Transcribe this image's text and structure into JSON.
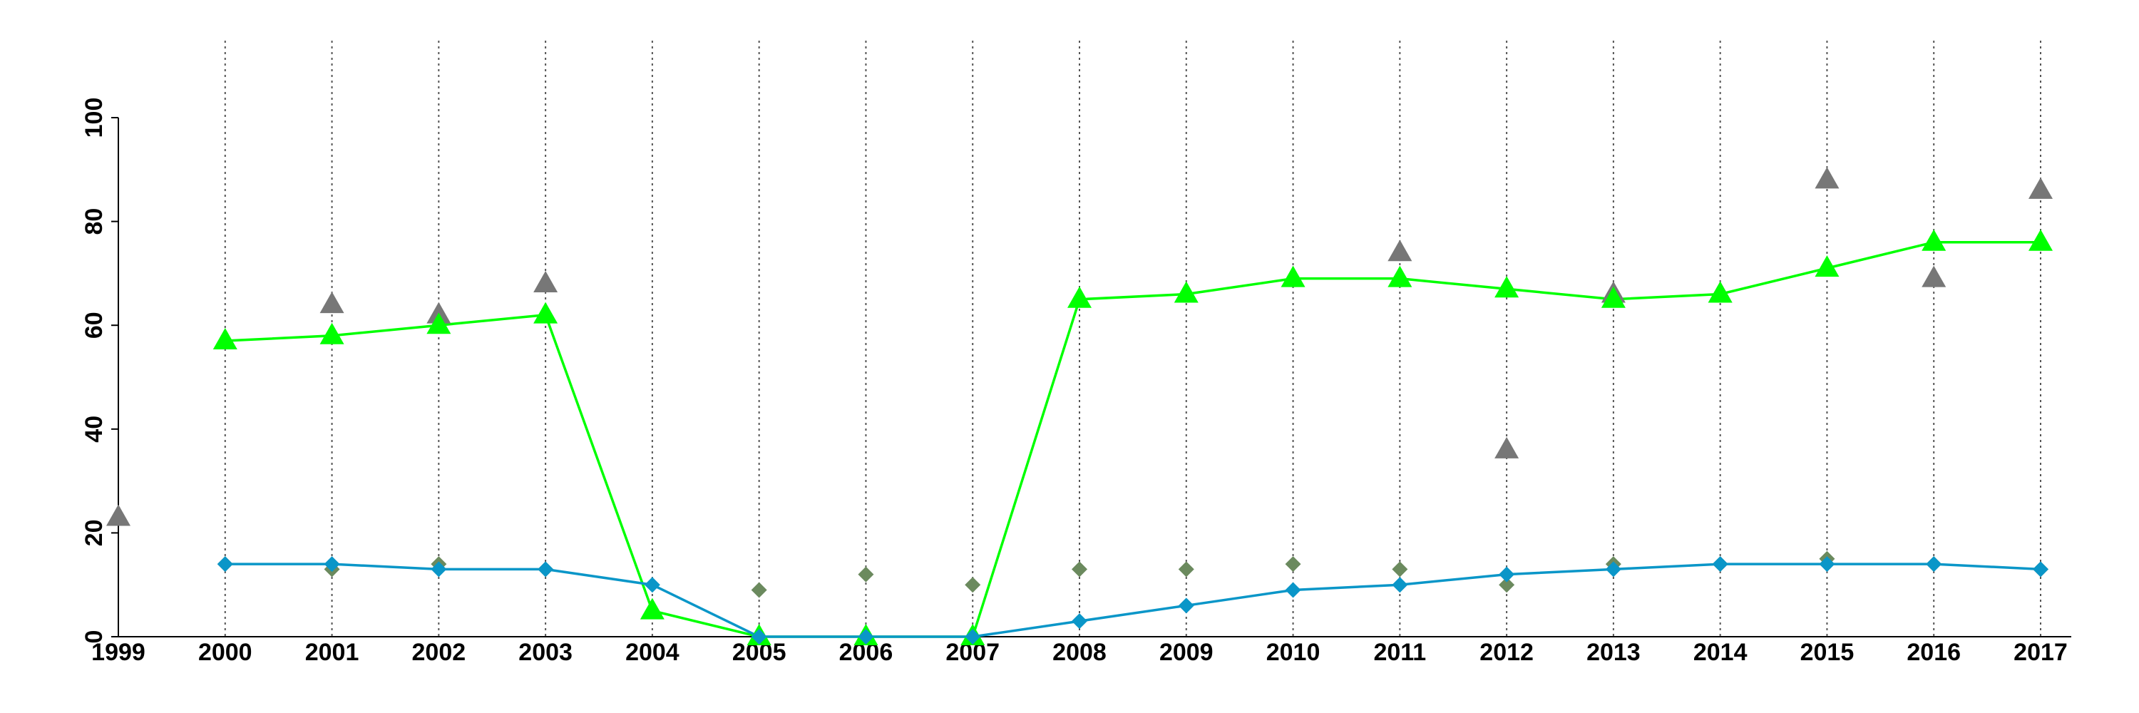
{
  "chart_data": {
    "type": "line",
    "x": [
      1999,
      2000,
      2001,
      2002,
      2003,
      2004,
      2005,
      2006,
      2007,
      2008,
      2009,
      2010,
      2011,
      2012,
      2013,
      2014,
      2015,
      2016,
      2017
    ],
    "series": [
      {
        "color": "#00ff00",
        "marker": "triangle",
        "line": true,
        "values": [
          null,
          57,
          58,
          60,
          62,
          5,
          0,
          0,
          0,
          65,
          66,
          69,
          69,
          67,
          65,
          66,
          71,
          76,
          76
        ]
      },
      {
        "color": "#0a96c8",
        "marker": "diamond",
        "line": true,
        "values": [
          null,
          14,
          14,
          13,
          13,
          10,
          0,
          0,
          0,
          3,
          6,
          9,
          10,
          12,
          13,
          14,
          14,
          14,
          13
        ]
      },
      {
        "color": "#777777",
        "marker": "triangle",
        "line": false,
        "values": [
          23,
          null,
          64,
          62,
          68,
          null,
          null,
          null,
          null,
          null,
          null,
          null,
          74,
          36,
          66,
          66,
          88,
          69,
          86
        ]
      },
      {
        "color": "#6b8a5e",
        "marker": "diamond",
        "line": false,
        "values": [
          null,
          14,
          13,
          14,
          13,
          null,
          9,
          12,
          10,
          13,
          13,
          14,
          13,
          10,
          14,
          14,
          15,
          14,
          13
        ]
      }
    ],
    "xlim": [
      1999,
      2017
    ],
    "xticks": [
      1999,
      2000,
      2001,
      2002,
      2003,
      2004,
      2005,
      2006,
      2007,
      2008,
      2009,
      2010,
      2011,
      2012,
      2013,
      2014,
      2015,
      2016,
      2017
    ],
    "ylim": [
      0,
      100
    ],
    "yticks": [
      0,
      20,
      40,
      60,
      80,
      100
    ],
    "grid": "x"
  }
}
